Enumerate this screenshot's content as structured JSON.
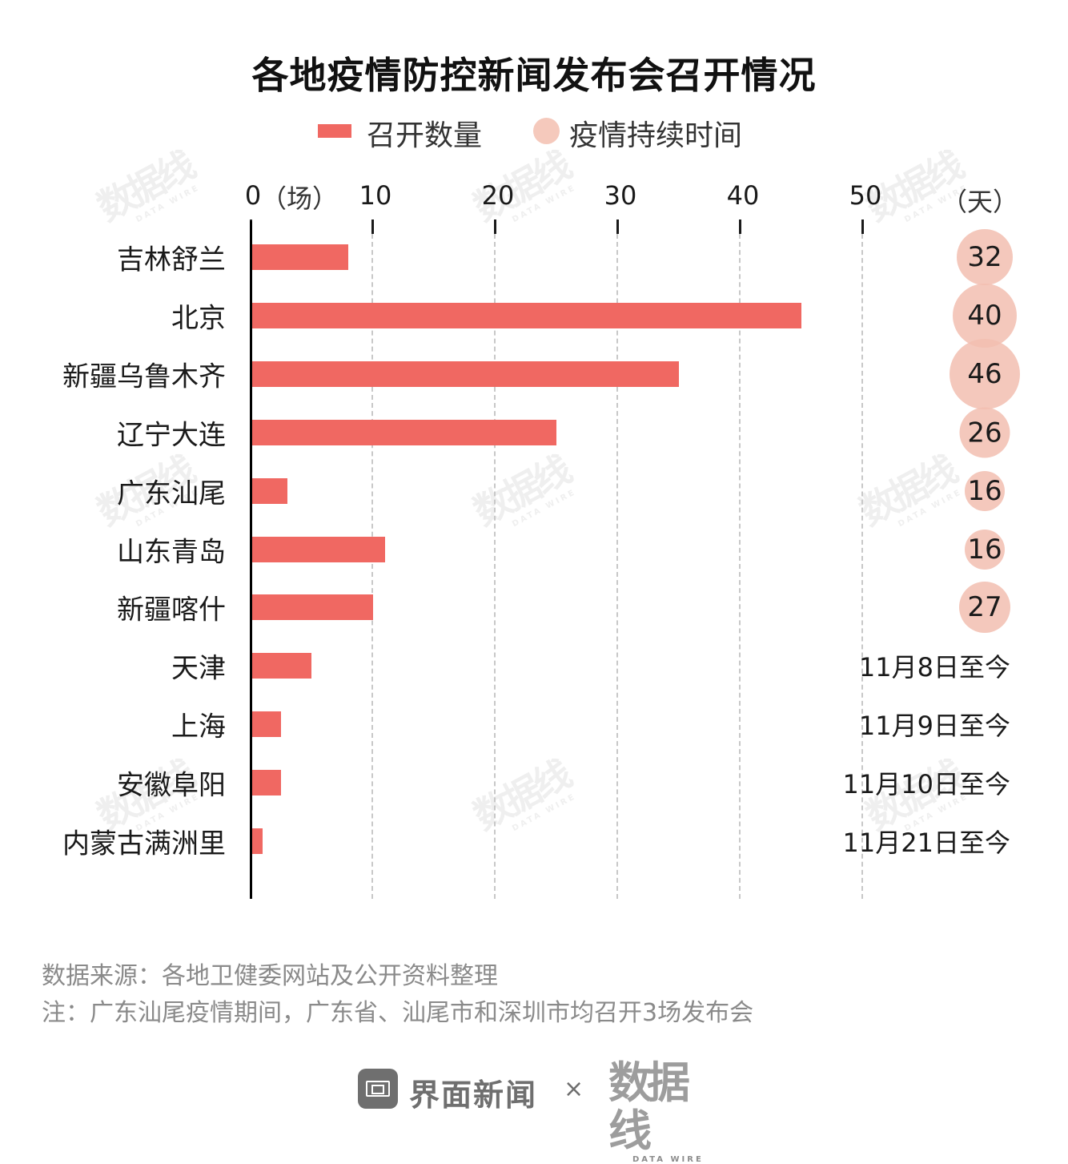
{
  "title": "各地疫情防控新闻发布会召开情况",
  "legend": {
    "bar_label": "召开数量",
    "dot_label": "疫情持续时间"
  },
  "axis": {
    "ticks": [
      "0",
      "10",
      "20",
      "30",
      "40",
      "50"
    ],
    "x_unit": "（场）",
    "right_unit": "（天）"
  },
  "rows": [
    {
      "region": "吉林舒兰",
      "count": 8,
      "duration": "32"
    },
    {
      "region": "北京",
      "count": 45,
      "duration": "40"
    },
    {
      "region": "新疆乌鲁木齐",
      "count": 35,
      "duration": "46"
    },
    {
      "region": "辽宁大连",
      "count": 25,
      "duration": "26"
    },
    {
      "region": "广东汕尾",
      "count": 3,
      "duration": "16"
    },
    {
      "region": "山东青岛",
      "count": 11,
      "duration": "16"
    },
    {
      "region": "新疆喀什",
      "count": 10,
      "duration": "27"
    },
    {
      "region": "天津",
      "count": 5,
      "duration": "11月8日至今"
    },
    {
      "region": "上海",
      "count": 2.5,
      "duration": "11月9日至今"
    },
    {
      "region": "安徽阜阳",
      "count": 2.5,
      "duration": "11月10日至今"
    },
    {
      "region": "内蒙古满洲里",
      "count": 1,
      "duration": "11月21日至今"
    }
  ],
  "notes": {
    "source": "数据来源：各地卫健委网站及公开资料整理",
    "note": "注：广东汕尾疫情期间，广东省、汕尾市和深圳市均召开3场发布会"
  },
  "footer": {
    "brand1": "界面新闻",
    "separator": "×",
    "brand2": "数据线",
    "brand2_sub": "DATA WIRE"
  },
  "watermark": {
    "text": "数据线",
    "sub": "DATA WIRE"
  },
  "colors": {
    "bar": "#f06862",
    "bubble": "#f5c9bc",
    "grid": "#c8c8c8",
    "note_text": "#8a8a8a"
  },
  "chart_data": {
    "type": "bar",
    "orientation": "horizontal",
    "title": "各地疫情防控新闻发布会召开情况",
    "xlabel": "（场）",
    "xlim": [
      0,
      50
    ],
    "x_ticks": [
      0,
      10,
      20,
      30,
      40,
      50
    ],
    "grid": "vertical dashed",
    "legend_position": "top",
    "categories": [
      "吉林舒兰",
      "北京",
      "新疆乌鲁木齐",
      "辽宁大连",
      "广东汕尾",
      "山东青岛",
      "新疆喀什",
      "天津",
      "上海",
      "安徽阜阳",
      "内蒙古满洲里"
    ],
    "series": [
      {
        "name": "召开数量",
        "type": "bar",
        "unit": "场",
        "values": [
          8,
          45,
          35,
          25,
          3,
          11,
          10,
          5,
          2.5,
          2.5,
          1
        ]
      },
      {
        "name": "疫情持续时间",
        "type": "bubble",
        "unit": "天",
        "values": [
          32,
          40,
          46,
          26,
          16,
          16,
          27,
          null,
          null,
          null,
          null
        ],
        "text_values": [
          null,
          null,
          null,
          null,
          null,
          null,
          null,
          "11月8日至今",
          "11月9日至今",
          "11月10日至今",
          "11月21日至今"
        ]
      }
    ],
    "annotations": [
      "数据来源：各地卫健委网站及公开资料整理",
      "注：广东汕尾疫情期间，广东省、汕尾市和深圳市均召开3场发布会"
    ]
  }
}
